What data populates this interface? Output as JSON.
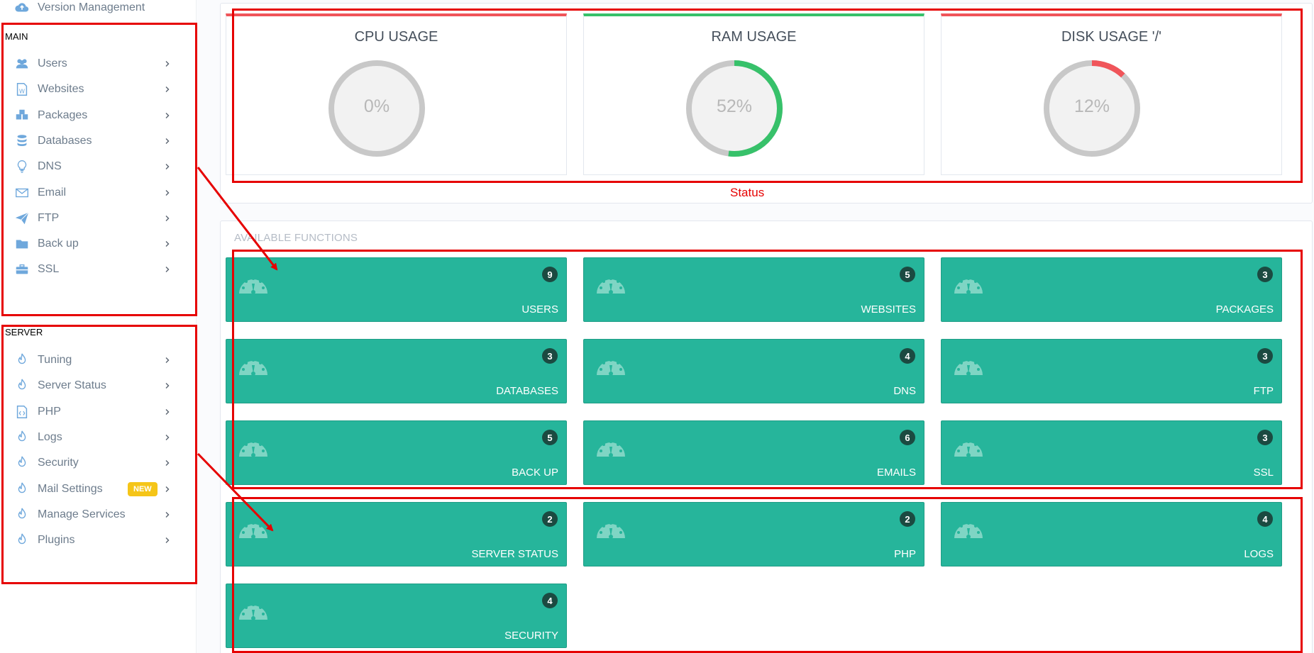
{
  "sidebar": {
    "top_item": {
      "label": "Version Management",
      "icon": "cloud-upload-icon"
    },
    "main_section_title": "MAIN",
    "main_items": [
      {
        "label": "Users",
        "icon": "users-icon"
      },
      {
        "label": "Websites",
        "icon": "website-doc-icon"
      },
      {
        "label": "Packages",
        "icon": "packages-icon"
      },
      {
        "label": "Databases",
        "icon": "database-icon"
      },
      {
        "label": "DNS",
        "icon": "lightbulb-icon"
      },
      {
        "label": "Email",
        "icon": "envelope-icon"
      },
      {
        "label": "FTP",
        "icon": "paper-plane-icon"
      },
      {
        "label": "Back up",
        "icon": "folder-icon"
      },
      {
        "label": "SSL",
        "icon": "briefcase-icon"
      }
    ],
    "server_section_title": "SERVER",
    "server_items": [
      {
        "label": "Tuning",
        "icon": "flame-icon"
      },
      {
        "label": "Server Status",
        "icon": "flame-icon"
      },
      {
        "label": "PHP",
        "icon": "code-file-icon"
      },
      {
        "label": "Logs",
        "icon": "flame-icon"
      },
      {
        "label": "Security",
        "icon": "flame-icon"
      },
      {
        "label": "Mail Settings",
        "icon": "flame-icon",
        "badge": "NEW"
      },
      {
        "label": "Manage Services",
        "icon": "flame-icon"
      },
      {
        "label": "Plugins",
        "icon": "flame-icon"
      }
    ]
  },
  "status": {
    "cards": [
      {
        "title": "CPU USAGE",
        "value_text": "0%",
        "percent": 0,
        "bar_color": "#f0555a"
      },
      {
        "title": "RAM USAGE",
        "value_text": "52%",
        "percent": 52,
        "bar_color": "#37c16a"
      },
      {
        "title": "DISK USAGE '/'",
        "value_text": "12%",
        "percent": 12,
        "bar_color": "#f0555a"
      }
    ],
    "annotation": "Status"
  },
  "functions": {
    "section_title": "AVAILABLE FUNCTIONS",
    "tiles": [
      {
        "label": "USERS",
        "count": "9"
      },
      {
        "label": "WEBSITES",
        "count": "5"
      },
      {
        "label": "PACKAGES",
        "count": "3"
      },
      {
        "label": "DATABASES",
        "count": "3"
      },
      {
        "label": "DNS",
        "count": "4"
      },
      {
        "label": "FTP",
        "count": "3"
      },
      {
        "label": "BACK UP",
        "count": "5"
      },
      {
        "label": "EMAILS",
        "count": "6"
      },
      {
        "label": "SSL",
        "count": "3"
      },
      {
        "label": "SERVER STATUS",
        "count": "2"
      },
      {
        "label": "PHP",
        "count": "2"
      },
      {
        "label": "LOGS",
        "count": "4"
      },
      {
        "label": "SECURITY",
        "count": "4"
      }
    ]
  },
  "colors": {
    "tile_bg": "#26b59b",
    "badge_bg": "#1b4a41",
    "sidebar_icon": "#6fa8dc",
    "annotation": "#e60000",
    "gauge_track": "#c8c8c8"
  }
}
